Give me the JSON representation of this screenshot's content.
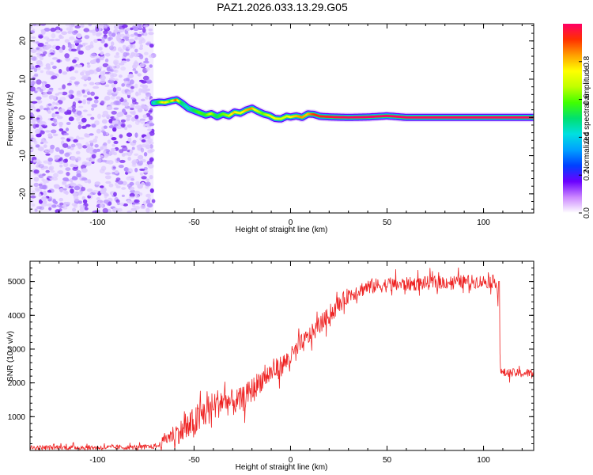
{
  "figure_title": "PAZ1.2026.033.13.29.G05",
  "colors": {
    "snr_line": "#ee2222",
    "frame": "#000000",
    "noise_light": "#dcc8ff",
    "noise_dark": "#7a2af0",
    "colorbar_stops": [
      "#ffffff",
      "#cc88ff",
      "#6a00ff",
      "#0040ff",
      "#00a0ff",
      "#00e0e0",
      "#00e070",
      "#40ff00",
      "#c0ff00",
      "#ffff00",
      "#ffa000",
      "#ff3000",
      "#ff0066"
    ]
  },
  "chart_data": [
    {
      "type": "heatmap",
      "title": "PAZ1.2026.033.13.29.G05",
      "xlabel": "Height of straight line (km)",
      "ylabel": "Frequency (Hz)",
      "xlim": [
        -135,
        126
      ],
      "ylim": [
        -25,
        24.5
      ],
      "xticks": [
        -100,
        -50,
        0,
        50,
        100
      ],
      "xtick_labels": [
        "-100",
        "-50",
        "0",
        "50",
        "100"
      ],
      "yticks": [
        -20,
        -10,
        0,
        10,
        20
      ],
      "ytick_labels": [
        "-20",
        "-10",
        "0",
        "10",
        "20"
      ],
      "noise_region_x": [
        -135,
        -71
      ],
      "signal_track": {
        "x": [
          -71,
          -68,
          -65,
          -62,
          -59,
          -56,
          -53,
          -50,
          -47,
          -44,
          -41,
          -38,
          -35,
          -32,
          -29,
          -26,
          -23,
          -20,
          -17,
          -14,
          -11,
          -8,
          -5,
          -2,
          0,
          3,
          6,
          9,
          12,
          15,
          18,
          22,
          30,
          40,
          50,
          60,
          70,
          80,
          90,
          100,
          110,
          126
        ],
        "frequency": [
          3.8,
          4.0,
          3.9,
          4.3,
          4.6,
          3.6,
          2.4,
          1.8,
          1.2,
          0.6,
          1.0,
          0.2,
          0.9,
          0.4,
          1.4,
          1.1,
          1.9,
          2.4,
          1.6,
          0.9,
          0.5,
          -0.3,
          -0.4,
          0.3,
          0.1,
          0.4,
          0.0,
          0.9,
          0.8,
          0.3,
          0.2,
          0.1,
          0.0,
          0.1,
          0.4,
          0.0,
          0.0,
          0.0,
          0.0,
          0.0,
          0.0,
          0.0
        ],
        "amplitude": [
          0.35,
          0.55,
          0.8,
          0.6,
          0.9,
          0.5,
          0.4,
          0.5,
          0.6,
          0.55,
          0.7,
          0.5,
          0.6,
          0.65,
          0.8,
          0.7,
          0.8,
          0.85,
          0.7,
          0.6,
          0.7,
          0.75,
          0.7,
          0.7,
          0.75,
          0.8,
          0.85,
          0.8,
          0.9,
          0.95,
          0.95,
          0.97,
          1.0,
          1.0,
          1.0,
          1.0,
          1.0,
          1.0,
          1.0,
          1.0,
          1.0,
          1.0
        ]
      },
      "colorbar": {
        "label": "Normalized spectral amplitude",
        "range": [
          0,
          1
        ],
        "ticks": [
          0.0,
          0.2,
          0.4,
          0.6,
          0.8
        ],
        "tick_labels": [
          "0.0",
          "0.2",
          "0.4",
          "0.6",
          "0.8"
        ]
      }
    },
    {
      "type": "line",
      "xlabel": "Height of straight line (km)",
      "ylabel": "SNR (10 * v/v)",
      "xlim": [
        -135,
        126
      ],
      "ylim": [
        0,
        5600
      ],
      "xticks": [
        -100,
        -50,
        0,
        50,
        100
      ],
      "xtick_labels": [
        "-100",
        "-50",
        "0",
        "50",
        "100"
      ],
      "yticks": [
        1000,
        2000,
        3000,
        4000,
        5000
      ],
      "ytick_labels": [
        "1000",
        "2000",
        "3000",
        "4000",
        "5000"
      ],
      "series": [
        {
          "name": "SNR",
          "x": [
            -135,
            -120,
            -100,
            -80,
            -72,
            -68,
            -65,
            -60,
            -55,
            -50,
            -45,
            -40,
            -35,
            -30,
            -25,
            -20,
            -15,
            -10,
            -5,
            0,
            5,
            10,
            15,
            20,
            25,
            30,
            40,
            50,
            60,
            70,
            80,
            90,
            100,
            107,
            108,
            109,
            112,
            120,
            126
          ],
          "y": [
            80,
            90,
            85,
            95,
            110,
            150,
            350,
            500,
            600,
            800,
            1100,
            1300,
            1500,
            1400,
            1500,
            1800,
            2100,
            2300,
            2500,
            2750,
            3100,
            3400,
            3700,
            4000,
            4300,
            4600,
            4850,
            4900,
            4920,
            4950,
            4980,
            5000,
            5000,
            5000,
            3500,
            2300,
            2300,
            2280,
            2300
          ],
          "noise_amplitude": [
            70,
            70,
            70,
            70,
            70,
            90,
            200,
            300,
            400,
            500,
            500,
            450,
            450,
            400,
            380,
            360,
            350,
            330,
            320,
            300,
            300,
            280,
            270,
            260,
            250,
            240,
            230,
            220,
            210,
            210,
            200,
            200,
            200,
            200,
            0,
            130,
            130,
            130,
            130
          ]
        }
      ]
    }
  ]
}
